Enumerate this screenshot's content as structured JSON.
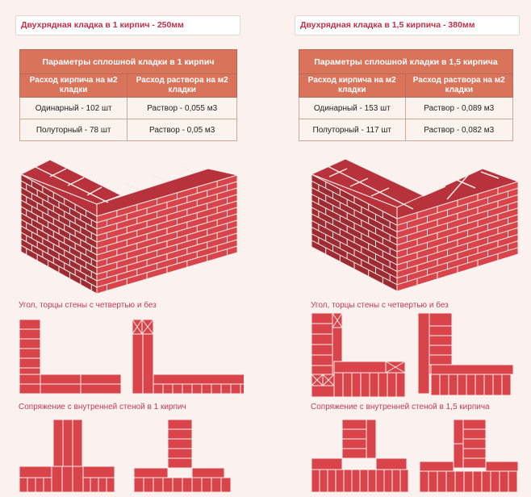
{
  "left": {
    "title": "Двухрядная кладка в 1 кирпич - 250мм",
    "table": {
      "header": "Параметры сплошной кладки в 1 кирпич",
      "col1": "Расход кирпича на м2 кладки",
      "col2": "Расход раствора на м2 кладки",
      "rows": [
        {
          "brick": "Одинарный - 102 шт",
          "mortar": "Раствор - 0,055 м3"
        },
        {
          "brick": "Полуторный - 78 шт",
          "mortar": "Раствор - 0,05 м3"
        }
      ]
    },
    "caption_corner": "Угол, торцы стены с четвертью и без",
    "caption_junction": "Сопряжение с внутренней стеной в 1 кирпич"
  },
  "right": {
    "title": "Двухрядная кладка в 1,5 кирпича - 380мм",
    "table": {
      "header": "Параметры сплошной кладки в 1,5 кирпича",
      "col1": "Расход кирпича на м2 кладки",
      "col2": "Расход раствора на м2 кладки",
      "rows": [
        {
          "brick": "Одинарный - 153 шт",
          "mortar": "Раствор - 0,089 м3"
        },
        {
          "brick": "Полуторный - 117 шт",
          "mortar": "Раствор - 0,082 м3"
        }
      ]
    },
    "caption_corner": "Угол, торцы стены с четвертью и без",
    "caption_junction": "Сопряжение с внутренней стеной в 1,5 кирпича"
  },
  "colors": {
    "brick": "#d9434a",
    "brick_dark": "#9e2a32",
    "brick_top": "#b8323b",
    "mortar": "#f3ece9",
    "accent_text": "#c0304a",
    "table_header": "#d9735a"
  }
}
